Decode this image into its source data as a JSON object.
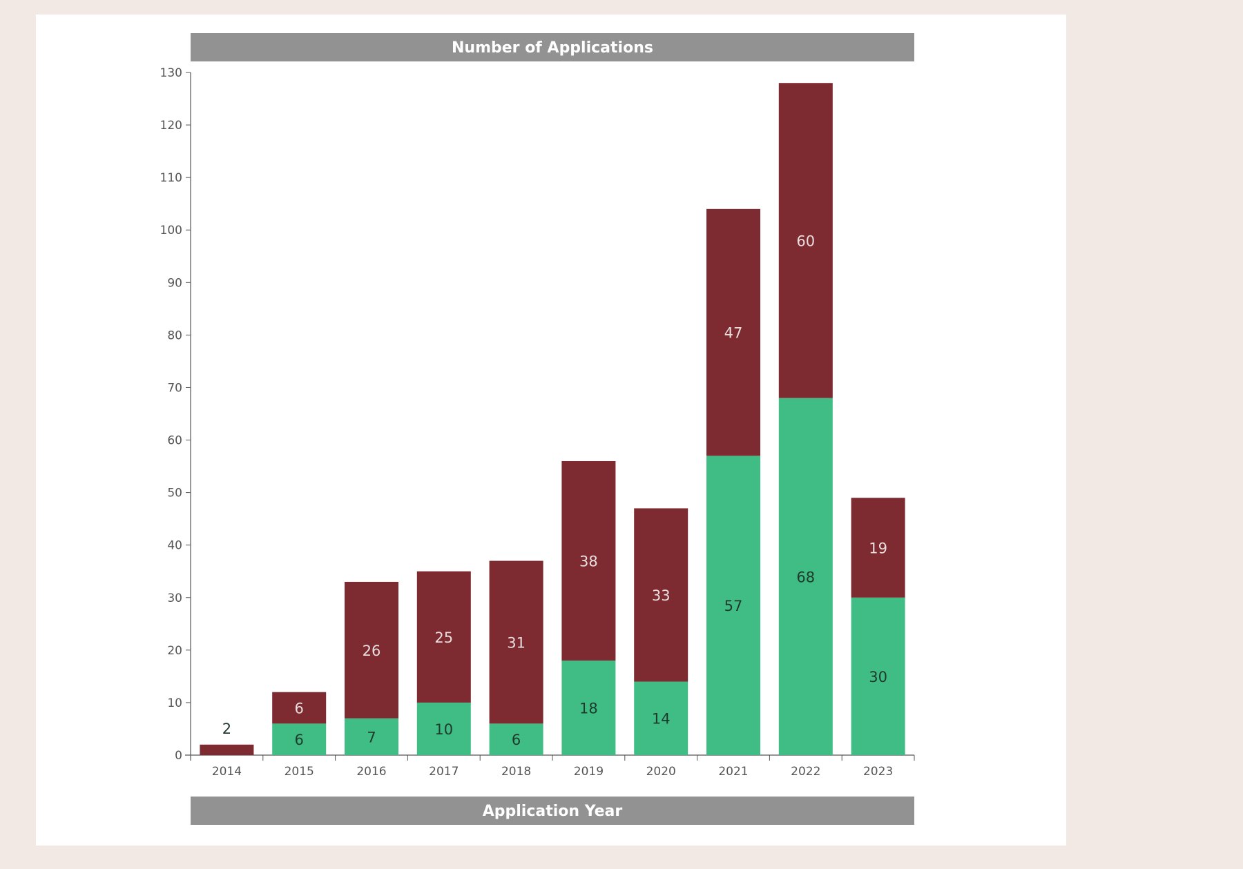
{
  "colors": {
    "background": "#f2e9e4",
    "panel": "#ffffff",
    "header_band": "#939292",
    "series_bottom": "#3fbd84",
    "series_top": "#7d2a30",
    "label_on_dark": "#e8dede",
    "label_on_light": "#1f3a2c",
    "axis": "#555555"
  },
  "chart_data": {
    "type": "bar",
    "stacked": true,
    "title": "Number of Applications",
    "xlabel": "Application Year",
    "ylabel": "",
    "ylim": [
      0,
      130
    ],
    "yticks": [
      0,
      10,
      20,
      30,
      40,
      50,
      60,
      70,
      80,
      90,
      100,
      110,
      120,
      130
    ],
    "categories": [
      "2014",
      "2015",
      "2016",
      "2017",
      "2018",
      "2019",
      "2020",
      "2021",
      "2022",
      "2023"
    ],
    "series": [
      {
        "color": "#3fbd84",
        "values": [
          0,
          6,
          7,
          10,
          6,
          18,
          14,
          57,
          68,
          30
        ]
      },
      {
        "color": "#7d2a30",
        "values": [
          2,
          6,
          26,
          25,
          31,
          38,
          33,
          47,
          60,
          19
        ]
      }
    ],
    "grid": false,
    "legend": "none"
  }
}
